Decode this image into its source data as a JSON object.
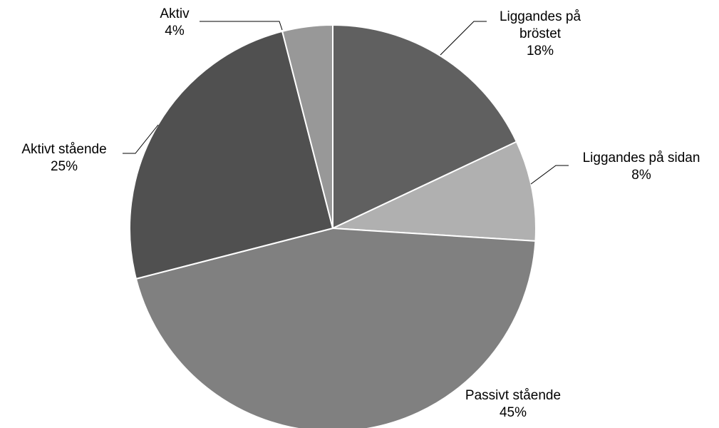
{
  "chart_data": {
    "type": "pie",
    "categories": [
      "Liggandes på bröstet",
      "Liggandes på sidan",
      "Passivt stående",
      "Aktivt stående",
      "Aktiv"
    ],
    "values": [
      18,
      8,
      45,
      25,
      4
    ],
    "value_labels": [
      "18%",
      "8%",
      "45%",
      "25%",
      "4%"
    ],
    "colors": [
      "#606060",
      "#b0b0b0",
      "#808080",
      "#505050",
      "#989898"
    ]
  }
}
